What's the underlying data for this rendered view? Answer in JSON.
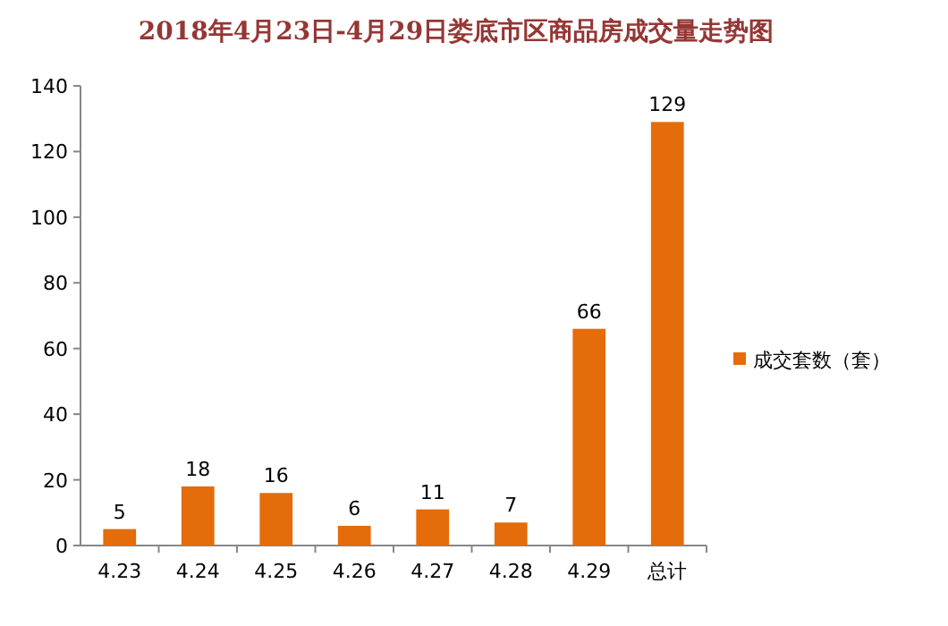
{
  "chart_data": {
    "type": "bar",
    "title": "2018年4月23日-4月29日娄底市区商品房成交量走势图",
    "categories": [
      "4.23",
      "4.24",
      "4.25",
      "4.26",
      "4.27",
      "4.28",
      "4.29",
      "总计"
    ],
    "series": [
      {
        "name": "成交套数（套）",
        "color": "#e46c0a",
        "values": [
          5,
          18,
          16,
          6,
          11,
          7,
          66,
          129
        ]
      }
    ],
    "ylim": [
      0,
      140
    ],
    "yticks": [
      0,
      20,
      40,
      60,
      80,
      100,
      120,
      140
    ],
    "data_labels": true,
    "legend": "right"
  }
}
